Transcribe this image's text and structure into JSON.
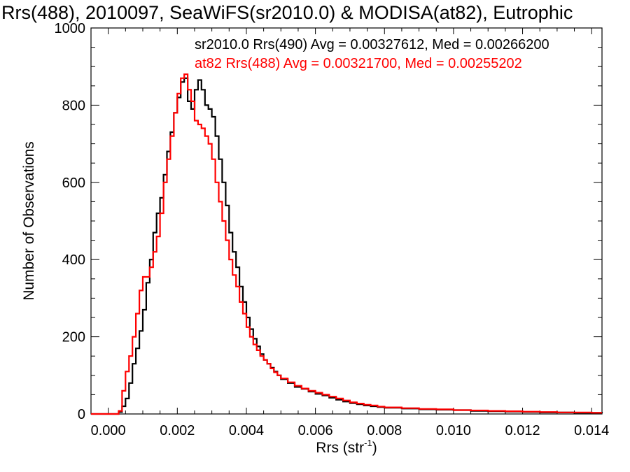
{
  "chart_data": {
    "type": "line",
    "title": "Rrs(488), 2010097, SeaWiFS(sr2010.0) & MODISA(at82), Eutrophic",
    "xlabel": "Rrs (str",
    "xlabel_sup": "-1",
    "xlabel_end": ")",
    "ylabel": "Number of Observations",
    "xlim": [
      -0.0005,
      0.0143
    ],
    "ylim": [
      0,
      1000
    ],
    "xticks": [
      0.0,
      0.002,
      0.004,
      0.006,
      0.008,
      0.01,
      0.012,
      0.014
    ],
    "xtick_labels": [
      "0.000",
      "0.002",
      "0.004",
      "0.006",
      "0.008",
      "0.010",
      "0.012",
      "0.014"
    ],
    "yticks": [
      0,
      200,
      400,
      600,
      800,
      1000
    ],
    "ytick_labels": [
      "0",
      "200",
      "400",
      "600",
      "800",
      "1000"
    ],
    "grid": false,
    "legend_placement": "top-right",
    "series": [
      {
        "name": "sr2010.0 Rrs(490) Avg = 0.00327612, Med = 0.00266200",
        "color": "#000000",
        "style": "step",
        "points": [
          [
            -0.0005,
            0
          ],
          [
            0.0002,
            0
          ],
          [
            0.0003,
            5
          ],
          [
            0.0004,
            20
          ],
          [
            0.0005,
            40
          ],
          [
            0.0006,
            80
          ],
          [
            0.0007,
            130
          ],
          [
            0.0008,
            170
          ],
          [
            0.0009,
            215
          ],
          [
            0.001,
            270
          ],
          [
            0.0011,
            340
          ],
          [
            0.0012,
            400
          ],
          [
            0.0013,
            470
          ],
          [
            0.0014,
            520
          ],
          [
            0.0015,
            560
          ],
          [
            0.0016,
            620
          ],
          [
            0.0017,
            680
          ],
          [
            0.0018,
            730
          ],
          [
            0.0019,
            780
          ],
          [
            0.002,
            820
          ],
          [
            0.0021,
            860
          ],
          [
            0.0022,
            870
          ],
          [
            0.0023,
            810
          ],
          [
            0.0024,
            790
          ],
          [
            0.0025,
            840
          ],
          [
            0.0026,
            865
          ],
          [
            0.0027,
            840
          ],
          [
            0.0028,
            800
          ],
          [
            0.0029,
            790
          ],
          [
            0.003,
            770
          ],
          [
            0.0031,
            720
          ],
          [
            0.0032,
            660
          ],
          [
            0.0033,
            600
          ],
          [
            0.0034,
            540
          ],
          [
            0.0035,
            470
          ],
          [
            0.0036,
            420
          ],
          [
            0.0037,
            380
          ],
          [
            0.0038,
            330
          ],
          [
            0.0039,
            290
          ],
          [
            0.004,
            250
          ],
          [
            0.0041,
            220
          ],
          [
            0.0042,
            195
          ],
          [
            0.0043,
            175
          ],
          [
            0.0044,
            155
          ],
          [
            0.0045,
            140
          ],
          [
            0.0046,
            130
          ],
          [
            0.0047,
            120
          ],
          [
            0.0048,
            110
          ],
          [
            0.0049,
            100
          ],
          [
            0.005,
            90
          ],
          [
            0.0052,
            80
          ],
          [
            0.0054,
            70
          ],
          [
            0.0056,
            65
          ],
          [
            0.0058,
            58
          ],
          [
            0.006,
            52
          ],
          [
            0.0062,
            48
          ],
          [
            0.0064,
            42
          ],
          [
            0.0066,
            37
          ],
          [
            0.0068,
            32
          ],
          [
            0.007,
            28
          ],
          [
            0.0072,
            25
          ],
          [
            0.0074,
            22
          ],
          [
            0.0076,
            20
          ],
          [
            0.0078,
            18
          ],
          [
            0.008,
            16
          ],
          [
            0.0085,
            14
          ],
          [
            0.009,
            12
          ],
          [
            0.0095,
            11
          ],
          [
            0.01,
            10
          ],
          [
            0.0105,
            8
          ],
          [
            0.011,
            7
          ],
          [
            0.0115,
            6
          ],
          [
            0.012,
            5
          ],
          [
            0.0125,
            4
          ],
          [
            0.013,
            4
          ],
          [
            0.0135,
            3
          ],
          [
            0.014,
            3
          ],
          [
            0.0143,
            2
          ]
        ]
      },
      {
        "name": "at82 Rrs(488) Avg = 0.00321700, Med = 0.00255202",
        "color": "#ff0000",
        "style": "step",
        "points": [
          [
            -0.0005,
            0
          ],
          [
            0.0002,
            0
          ],
          [
            0.0003,
            8
          ],
          [
            0.0004,
            60
          ],
          [
            0.0005,
            110
          ],
          [
            0.0006,
            150
          ],
          [
            0.0007,
            200
          ],
          [
            0.0008,
            260
          ],
          [
            0.0009,
            320
          ],
          [
            0.001,
            355
          ],
          [
            0.0011,
            355
          ],
          [
            0.0012,
            380
          ],
          [
            0.0013,
            420
          ],
          [
            0.0014,
            460
          ],
          [
            0.0015,
            520
          ],
          [
            0.0016,
            600
          ],
          [
            0.0017,
            660
          ],
          [
            0.0018,
            720
          ],
          [
            0.0019,
            780
          ],
          [
            0.002,
            830
          ],
          [
            0.0021,
            870
          ],
          [
            0.0022,
            880
          ],
          [
            0.0023,
            840
          ],
          [
            0.0024,
            810
          ],
          [
            0.0025,
            760
          ],
          [
            0.0026,
            750
          ],
          [
            0.0027,
            740
          ],
          [
            0.0028,
            720
          ],
          [
            0.0029,
            700
          ],
          [
            0.003,
            660
          ],
          [
            0.0031,
            600
          ],
          [
            0.0032,
            550
          ],
          [
            0.0033,
            500
          ],
          [
            0.0034,
            450
          ],
          [
            0.0035,
            400
          ],
          [
            0.0036,
            360
          ],
          [
            0.0037,
            330
          ],
          [
            0.0038,
            290
          ],
          [
            0.0039,
            260
          ],
          [
            0.004,
            225
          ],
          [
            0.0041,
            200
          ],
          [
            0.0042,
            180
          ],
          [
            0.0043,
            165
          ],
          [
            0.0044,
            150
          ],
          [
            0.0045,
            140
          ],
          [
            0.0046,
            130
          ],
          [
            0.0047,
            118
          ],
          [
            0.0048,
            108
          ],
          [
            0.0049,
            100
          ],
          [
            0.005,
            92
          ],
          [
            0.0052,
            82
          ],
          [
            0.0054,
            73
          ],
          [
            0.0056,
            66
          ],
          [
            0.0058,
            60
          ],
          [
            0.006,
            55
          ],
          [
            0.0062,
            50
          ],
          [
            0.0064,
            45
          ],
          [
            0.0066,
            40
          ],
          [
            0.0068,
            35
          ],
          [
            0.007,
            30
          ],
          [
            0.0072,
            27
          ],
          [
            0.0074,
            24
          ],
          [
            0.0076,
            22
          ],
          [
            0.0078,
            19
          ],
          [
            0.008,
            17
          ],
          [
            0.0085,
            15
          ],
          [
            0.009,
            13
          ],
          [
            0.0095,
            12
          ],
          [
            0.01,
            10
          ],
          [
            0.0105,
            9
          ],
          [
            0.011,
            8
          ],
          [
            0.0115,
            7
          ],
          [
            0.012,
            6
          ],
          [
            0.0125,
            5
          ],
          [
            0.013,
            4
          ],
          [
            0.0135,
            4
          ],
          [
            0.014,
            3
          ],
          [
            0.0143,
            3
          ]
        ]
      }
    ]
  }
}
